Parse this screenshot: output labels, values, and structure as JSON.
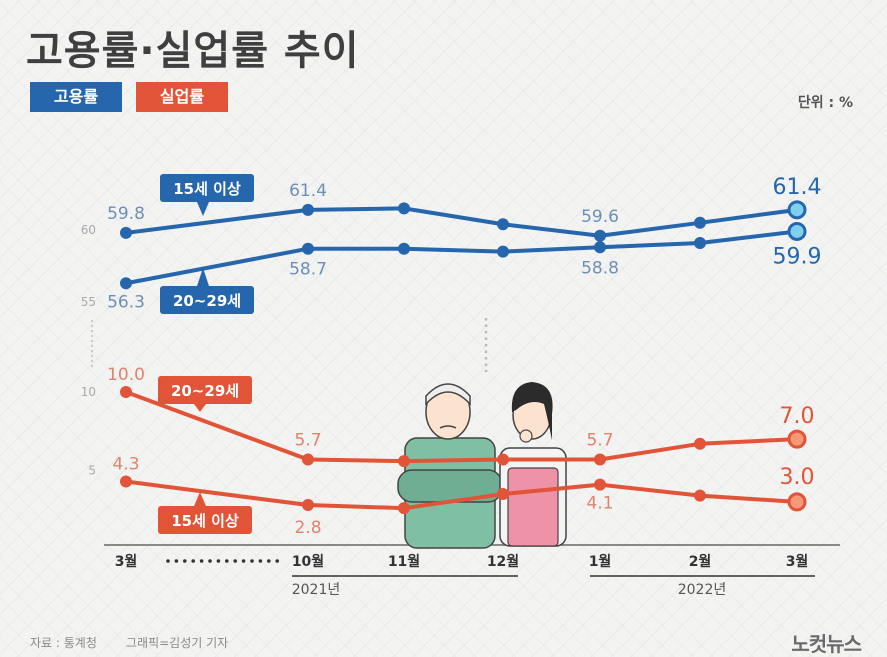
{
  "title": "고용률·실업률 추이",
  "legend": {
    "employment": "고용률",
    "unemployment": "실업률"
  },
  "unit": "단위 : %",
  "source": "자료 : 통계청",
  "credit": "그래픽=김성기 기자",
  "logo": "노컷뉴스",
  "chart_data": {
    "type": "line",
    "categories": [
      "3월",
      "10월",
      "11월",
      "12월",
      "1월",
      "2월",
      "3월"
    ],
    "year_labels": [
      "2021년",
      "2022년"
    ],
    "y_ticks": {
      "employment": [
        "60",
        "55"
      ],
      "unemployment": [
        "10",
        "5"
      ]
    },
    "series": [
      {
        "name": "15세 이상",
        "group": "고용률",
        "values": [
          59.8,
          61.4,
          61.5,
          60.4,
          59.6,
          60.5,
          61.4
        ],
        "labels": [
          "59.8",
          "61.4",
          "",
          "",
          "59.6",
          "",
          "61.4"
        ]
      },
      {
        "name": "20~29세",
        "group": "고용률",
        "values": [
          56.3,
          58.7,
          58.7,
          58.5,
          58.8,
          59.1,
          59.9
        ],
        "labels": [
          "56.3",
          "58.7",
          "",
          "",
          "58.8",
          "",
          "59.9"
        ]
      },
      {
        "name": "20~29세",
        "group": "실업률",
        "values": [
          10.0,
          5.7,
          5.6,
          5.7,
          5.7,
          6.7,
          7.0
        ],
        "labels": [
          "10.0",
          "5.7",
          "",
          "",
          "5.7",
          "",
          "7.0"
        ]
      },
      {
        "name": "15세 이상",
        "group": "실업률",
        "values": [
          4.3,
          2.8,
          2.6,
          3.5,
          4.1,
          3.4,
          3.0
        ],
        "labels": [
          "4.3",
          "2.8",
          "",
          "",
          "4.1",
          "",
          "3.0"
        ]
      }
    ],
    "colors": {
      "employment": "#2566ad",
      "unemployment": "#e25437"
    }
  }
}
